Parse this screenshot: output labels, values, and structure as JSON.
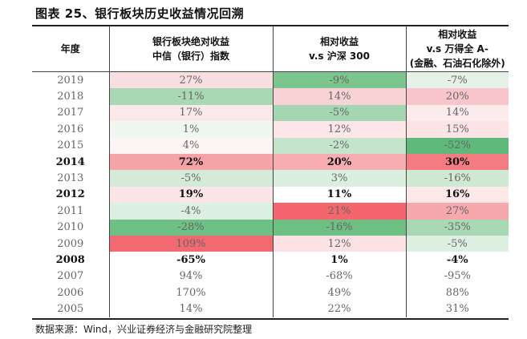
{
  "title": "图表 25、银行板块历史收益情况回溯",
  "headers": {
    "year": "年度",
    "col1": [
      "银行板块绝对收益",
      "中信（银行）指数"
    ],
    "col2": [
      "相对收益",
      "v.s 沪深 300"
    ],
    "col3": [
      "相对收益",
      "v.s 万得全 A-",
      "(金融、石油石化除外)"
    ]
  },
  "rows": [
    {
      "year": "2019",
      "abs": "27%",
      "hs": "-9%",
      "wd": "-7%",
      "bold": false,
      "bg": [
        "#f9dfe1",
        "#7cc58f",
        "#e6f1e8"
      ]
    },
    {
      "year": "2018",
      "abs": "-11%",
      "hs": "14%",
      "wd": "20%",
      "bold": false,
      "bg": [
        "#a8d8b4",
        "#f9d2d5",
        "#f8c6ca"
      ]
    },
    {
      "year": "2017",
      "abs": "17%",
      "hs": "-5%",
      "wd": "14%",
      "bold": false,
      "bg": [
        "#fbe8ea",
        "#a5d6b2",
        "#fcebed"
      ]
    },
    {
      "year": "2016",
      "abs": "1%",
      "hs": "12%",
      "wd": "15%",
      "bold": false,
      "bg": [
        "#eff7f0",
        "#fce6e8",
        "#fbe3e6"
      ]
    },
    {
      "year": "2015",
      "abs": "4%",
      "hs": "-2%",
      "wd": "-52%",
      "bold": false,
      "bg": [
        "#fcf5f6",
        "#c4e4cc",
        "#5fb97a"
      ]
    },
    {
      "year": "2014",
      "abs": "72%",
      "hs": "20%",
      "wd": "30%",
      "bold": true,
      "bg": [
        "#f6a3a8",
        "#f7aeb3",
        "#f47b82"
      ]
    },
    {
      "year": "2013",
      "abs": "-5%",
      "hs": "3%",
      "wd": "-16%",
      "bold": false,
      "bg": [
        "#d4ebd9",
        "#dbefe0",
        "#cfe9d5"
      ]
    },
    {
      "year": "2012",
      "abs": "19%",
      "hs": "11%",
      "wd": "16%",
      "bold": true,
      "bg": [
        "#fbe5e7",
        "#ffffff",
        "#fce7e9"
      ]
    },
    {
      "year": "2011",
      "abs": "-4%",
      "hs": "21%",
      "wd": "27%",
      "bold": false,
      "bg": [
        "#dcefe0",
        "#f4656d",
        "#f6a8ad"
      ]
    },
    {
      "year": "2010",
      "abs": "-28%",
      "hs": "-16%",
      "wd": "-35%",
      "bold": false,
      "bg": [
        "#6fc085",
        "#6dbf83",
        "#a9d8b5"
      ]
    },
    {
      "year": "2009",
      "abs": "109%",
      "hs": "12%",
      "wd": "-5%",
      "bold": false,
      "bg": [
        "#f26971",
        "#fbe1e4",
        "#dcefe1"
      ]
    },
    {
      "year": "2008",
      "abs": "-65%",
      "hs": "1%",
      "wd": "-4%",
      "bold": true,
      "bg": [
        "#ffffff",
        "#ffffff",
        "#ffffff"
      ]
    },
    {
      "year": "2007",
      "abs": "94%",
      "hs": "-68%",
      "wd": "-95%",
      "bold": false,
      "bg": [
        "#ffffff",
        "#ffffff",
        "#ffffff"
      ]
    },
    {
      "year": "2006",
      "abs": "170%",
      "hs": "49%",
      "wd": "88%",
      "bold": false,
      "bg": [
        "#ffffff",
        "#ffffff",
        "#ffffff"
      ]
    },
    {
      "year": "2005",
      "abs": "14%",
      "hs": "22%",
      "wd": "31%",
      "bold": false,
      "bg": [
        "#ffffff",
        "#ffffff",
        "#ffffff"
      ]
    }
  ],
  "source": "数据来源：Wind，兴业证券经济与金融研究院整理"
}
